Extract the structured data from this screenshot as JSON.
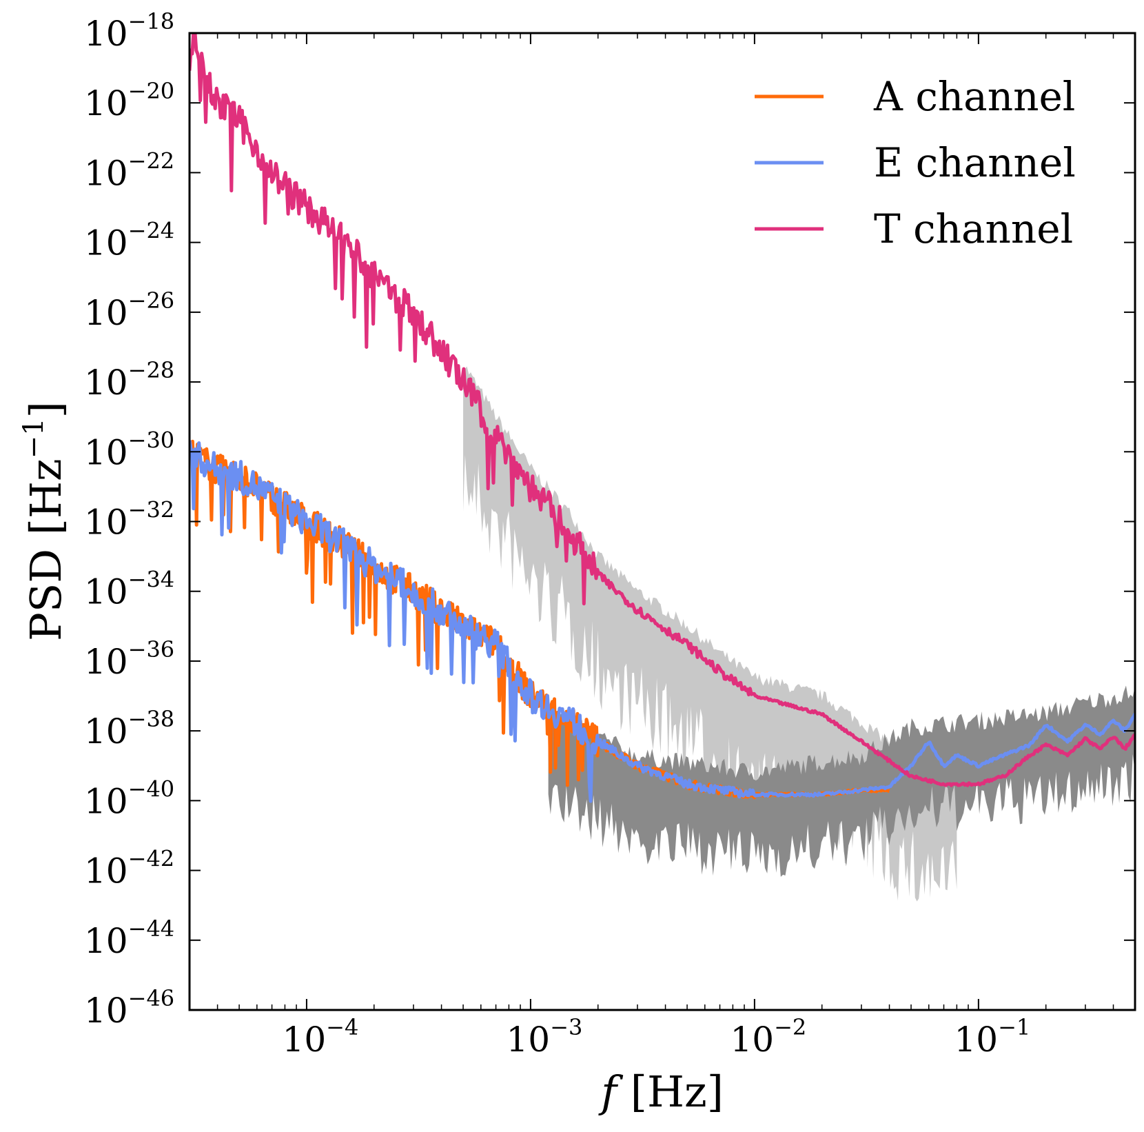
{
  "chart_data": {
    "type": "line",
    "xlabel": {
      "prefix": "f",
      "suffix": " [Hz]"
    },
    "ylabel": {
      "prefix": "PSD [Hz",
      "superscript": "−1",
      "suffix": "]"
    },
    "x_scale": "log",
    "y_scale": "log",
    "xlim": [
      3e-05,
      0.5
    ],
    "ylim": [
      1e-46,
      1e-18
    ],
    "x_ticks": [
      {
        "value": 0.0001,
        "base": "10",
        "exp": "−4"
      },
      {
        "value": 0.001,
        "base": "10",
        "exp": "−3"
      },
      {
        "value": 0.01,
        "base": "10",
        "exp": "−2"
      },
      {
        "value": 0.1,
        "base": "10",
        "exp": "−1"
      }
    ],
    "y_ticks": [
      {
        "value": 1e-18,
        "base": "10",
        "exp": "−18"
      },
      {
        "value": 1e-20,
        "base": "10",
        "exp": "−20"
      },
      {
        "value": 1e-22,
        "base": "10",
        "exp": "−22"
      },
      {
        "value": 1e-24,
        "base": "10",
        "exp": "−24"
      },
      {
        "value": 1e-26,
        "base": "10",
        "exp": "−26"
      },
      {
        "value": 1e-28,
        "base": "10",
        "exp": "−28"
      },
      {
        "value": 1e-30,
        "base": "10",
        "exp": "−30"
      },
      {
        "value": 1e-32,
        "base": "10",
        "exp": "−32"
      },
      {
        "value": 1e-34,
        "base": "10",
        "exp": "−34"
      },
      {
        "value": 1e-36,
        "base": "10",
        "exp": "−36"
      },
      {
        "value": 1e-38,
        "base": "10",
        "exp": "−38"
      },
      {
        "value": 1e-40,
        "base": "10",
        "exp": "−40"
      },
      {
        "value": 1e-42,
        "base": "10",
        "exp": "−42"
      },
      {
        "value": 1e-44,
        "base": "10",
        "exp": "−44"
      },
      {
        "value": 1e-46,
        "base": "10",
        "exp": "−46"
      }
    ],
    "legend_position": "top-right",
    "grid": false,
    "series": [
      {
        "name": "A channel",
        "color": "#ff6b0a",
        "x": [
          3e-05,
          4e-05,
          5e-05,
          7e-05,
          0.0001,
          0.00015,
          0.0002,
          0.0003,
          0.0005,
          0.0007,
          0.001,
          0.0015,
          0.002,
          0.003,
          0.005,
          0.007,
          0.01,
          0.02,
          0.03,
          0.04
        ],
        "y": [
          1e-30,
          3e-31,
          2e-31,
          5e-32,
          1e-32,
          2e-33,
          5e-34,
          1e-34,
          1e-35,
          3e-36,
          1e-37,
          2e-38,
          5e-39,
          1e-39,
          3e-40,
          2e-40,
          1.5e-40,
          1.5e-40,
          2e-40,
          2e-40
        ]
      },
      {
        "name": "E channel",
        "color": "#6b8ff2",
        "x": [
          3e-05,
          4e-05,
          5e-05,
          7e-05,
          0.0001,
          0.00015,
          0.0002,
          0.0003,
          0.0005,
          0.0007,
          0.001,
          0.0015,
          0.002,
          0.003,
          0.005,
          0.007,
          0.01,
          0.02,
          0.03,
          0.04,
          0.05,
          0.06,
          0.07,
          0.08,
          0.1,
          0.13,
          0.17,
          0.2,
          0.25,
          0.3,
          0.35,
          0.4,
          0.45,
          0.5
        ],
        "y": [
          1e-30,
          3e-31,
          2e-31,
          5e-32,
          1e-32,
          2e-33,
          5e-34,
          1e-34,
          1e-35,
          3e-36,
          1e-37,
          2e-38,
          5e-39,
          1e-39,
          3e-40,
          2e-40,
          1.5e-40,
          1.5e-40,
          2e-40,
          2.5e-40,
          1e-39,
          5e-39,
          1e-39,
          2e-39,
          1e-39,
          2e-39,
          4e-39,
          1.5e-38,
          5e-39,
          1.5e-38,
          8e-39,
          2e-38,
          1e-38,
          3e-38
        ]
      },
      {
        "name": "T channel",
        "color": "#e0307c",
        "x": [
          3e-05,
          3.2e-05,
          3.5e-05,
          4e-05,
          5e-05,
          7e-05,
          0.0001,
          0.00015,
          0.0002,
          0.0003,
          0.0005,
          0.0007,
          0.001,
          0.0015,
          0.002,
          0.003,
          0.005,
          0.007,
          0.01,
          0.02,
          0.03,
          0.05,
          0.07,
          0.1,
          0.13,
          0.17,
          0.2,
          0.25,
          0.3,
          0.35,
          0.4,
          0.45,
          0.5
        ],
        "y": [
          1e-19,
          1e-18,
          1e-19,
          1e-20,
          3e-21,
          1e-22,
          1e-23,
          1e-24,
          1e-25,
          1e-26,
          1e-28,
          3e-30,
          1e-31,
          5e-33,
          3e-34,
          3e-35,
          3e-36,
          5e-37,
          1e-37,
          3e-38,
          5e-39,
          5e-40,
          3e-40,
          3e-40,
          5e-40,
          2e-39,
          4e-39,
          2e-39,
          6e-39,
          3e-39,
          7e-39,
          3e-39,
          8e-39
        ]
      }
    ]
  }
}
